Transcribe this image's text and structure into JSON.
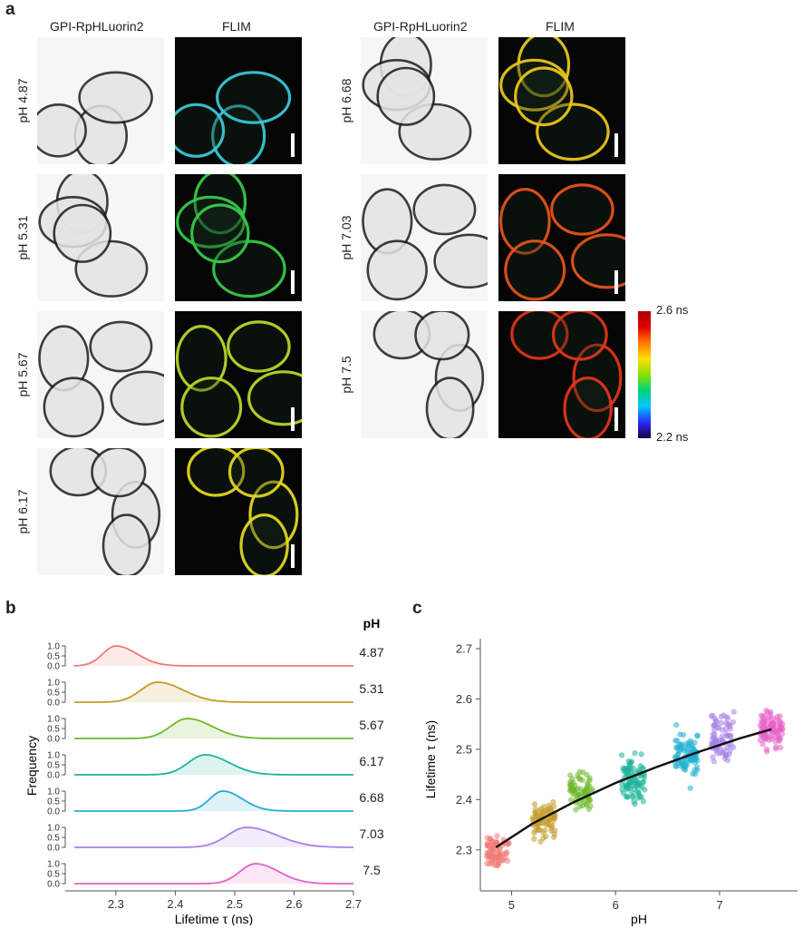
{
  "panel_a": {
    "letter": "a",
    "col_gpi": "GPI-RpHLuorin2",
    "col_flim": "FLIM",
    "left_rows": [
      {
        "ph": "pH 4.87",
        "tint": "#39c6d6"
      },
      {
        "ph": "pH 5.31",
        "tint": "#36c94a"
      },
      {
        "ph": "pH 5.67",
        "tint": "#b6d628"
      },
      {
        "ph": "pH 6.17",
        "tint": "#e3d61f"
      }
    ],
    "right_rows": [
      {
        "ph": "pH 6.68",
        "tint": "#e8c51a"
      },
      {
        "ph": "pH 7.03",
        "tint": "#e2521c"
      },
      {
        "ph": "pH 7.5",
        "tint": "#e0341c"
      }
    ],
    "colorbar": {
      "max_label": "2.6 ns",
      "min_label": "2.2 ns"
    }
  },
  "panel_b": {
    "letter": "b",
    "ylabel": "Frequency",
    "xlabel": "Lifetime τ (ns)",
    "legend_title": "pH",
    "tick_labels_y": [
      "1.0",
      "0.5",
      "0.0"
    ],
    "x_ticks": [
      "2.3",
      "2.4",
      "2.5",
      "2.6",
      "2.7"
    ]
  },
  "panel_c": {
    "letter": "c",
    "ylabel": "Lifetime τ (ns)",
    "xlabel": "pH",
    "x_ticks": [
      "5",
      "6",
      "7"
    ],
    "y_ticks": [
      "2.3",
      "2.4",
      "2.5",
      "2.6",
      "2.7"
    ]
  },
  "chart_data": [
    {
      "type": "area",
      "xlabel": "Lifetime τ (ns)",
      "ylabel": "Frequency",
      "xlim": [
        2.23,
        2.7
      ],
      "ylim": [
        0,
        1
      ],
      "x_ticks": [
        2.3,
        2.4,
        2.5,
        2.6,
        2.7
      ],
      "legend_title": "pH",
      "series": [
        {
          "name": "4.87",
          "color": "#f07a72",
          "peak": 2.3,
          "width": 0.022,
          "skew": 0.6
        },
        {
          "name": "5.31",
          "color": "#c49a2c",
          "peak": 2.37,
          "width": 0.028,
          "skew": 0.55
        },
        {
          "name": "5.67",
          "color": "#6cb82a",
          "peak": 2.42,
          "width": 0.028,
          "skew": 0.5
        },
        {
          "name": "6.17",
          "color": "#1fb49a",
          "peak": 2.45,
          "width": 0.028,
          "skew": 0.45
        },
        {
          "name": "6.68",
          "color": "#22b0d0",
          "peak": 2.48,
          "width": 0.022,
          "skew": 0.5
        },
        {
          "name": "7.03",
          "color": "#a782e6",
          "peak": 2.52,
          "width": 0.032,
          "skew": 0.6
        },
        {
          "name": "7.5",
          "color": "#e860c8",
          "peak": 2.535,
          "width": 0.026,
          "skew": 0.5
        }
      ]
    },
    {
      "type": "scatter",
      "xlabel": "pH",
      "ylabel": "Lifetime τ (ns)",
      "xlim": [
        4.7,
        7.75
      ],
      "ylim": [
        2.24,
        2.72
      ],
      "x_ticks": [
        5,
        6,
        7
      ],
      "y_ticks": [
        2.3,
        2.4,
        2.5,
        2.6,
        2.7
      ],
      "series": [
        {
          "name": "4.87",
          "x": 4.87,
          "mean": 2.3,
          "sd": 0.022,
          "n": 70,
          "color": "#f07a72"
        },
        {
          "name": "5.31",
          "x": 5.31,
          "mean": 2.36,
          "sd": 0.025,
          "n": 80,
          "color": "#c49a2c"
        },
        {
          "name": "5.67",
          "x": 5.67,
          "mean": 2.42,
          "sd": 0.025,
          "n": 70,
          "color": "#6cb82a"
        },
        {
          "name": "6.17",
          "x": 6.17,
          "mean": 2.44,
          "sd": 0.03,
          "n": 90,
          "color": "#1fb49a"
        },
        {
          "name": "6.68",
          "x": 6.68,
          "mean": 2.49,
          "sd": 0.03,
          "n": 90,
          "color": "#22b0d0"
        },
        {
          "name": "7.03",
          "x": 7.03,
          "mean": 2.52,
          "sd": 0.035,
          "n": 80,
          "color": "#a782e6"
        },
        {
          "name": "7.5",
          "x": 7.5,
          "mean": 2.54,
          "sd": 0.025,
          "n": 90,
          "color": "#e860c8"
        }
      ],
      "fit": {
        "x": [
          4.85,
          5.2,
          5.6,
          6.0,
          6.4,
          6.8,
          7.2,
          7.5
        ],
        "y": [
          2.305,
          2.352,
          2.395,
          2.433,
          2.465,
          2.495,
          2.522,
          2.54
        ]
      }
    }
  ]
}
